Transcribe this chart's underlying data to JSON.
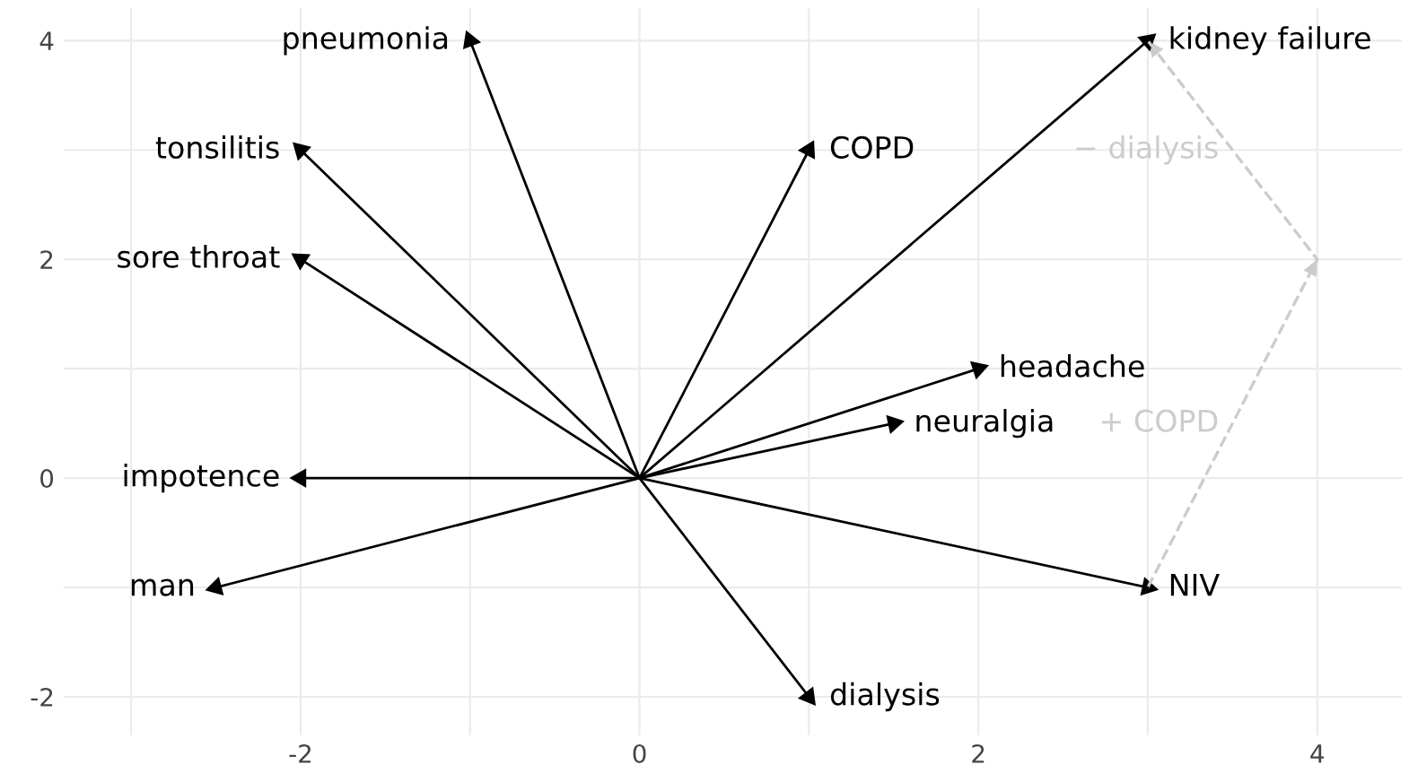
{
  "chart_data": {
    "type": "scatter",
    "series": [
      {
        "color": "#000000",
        "x": [
          -1,
          -2,
          -2,
          -2,
          -2.5,
          1,
          3,
          1.5,
          2,
          1,
          3
        ],
        "values": [
          4,
          3,
          2,
          0,
          -1,
          -2,
          -1,
          0.5,
          1,
          3,
          4
        ]
      },
      {
        "type": "line",
        "color": "#cccccc",
        "line_style": "dashed",
        "marker": "none",
        "x": [
          3,
          4,
          3
        ],
        "values": [
          -1,
          2,
          4
        ]
      }
    ],
    "annotations": [
      {
        "text": "pneumonia",
        "x": -1,
        "y": 4
      },
      {
        "text": "tonsilitis",
        "x": -2,
        "y": 3
      },
      {
        "text": "sore throat",
        "x": -2,
        "y": 2
      },
      {
        "text": "impotence",
        "x": -2,
        "y": 0
      },
      {
        "text": "man",
        "x": -2.5,
        "y": -1
      },
      {
        "text": "dialysis",
        "x": 1,
        "y": -2
      },
      {
        "text": "NIV",
        "x": 3,
        "y": -1
      },
      {
        "text": "neuralgia",
        "x": 1.5,
        "y": 0.5
      },
      {
        "text": "headache",
        "x": 2,
        "y": 1
      },
      {
        "text": "COPD",
        "x": 1,
        "y": 3
      },
      {
        "text": "kidney failure",
        "x": 3,
        "y": 4
      },
      {
        "text": "+ COPD",
        "x": 3.5,
        "y": 0.5
      },
      {
        "text": "− dialysis",
        "x": 3.5,
        "y": 3
      }
    ],
    "xlim": [
      -3.4,
      4.5
    ],
    "ylim": [
      -2.35,
      4.3
    ],
    "xticks": [
      {
        "value": -3,
        "label": null
      },
      -2,
      {
        "value": -1,
        "label": null
      },
      0,
      {
        "value": 1,
        "label": null
      },
      2,
      {
        "value": 3,
        "label": null
      },
      4
    ],
    "yticks": [
      -2,
      {
        "value": -1,
        "label": null
      },
      0,
      {
        "value": 1,
        "label": null
      },
      2,
      {
        "value": 3,
        "label": null
      },
      4
    ],
    "grid": true,
    "marker": "triangle"
  }
}
